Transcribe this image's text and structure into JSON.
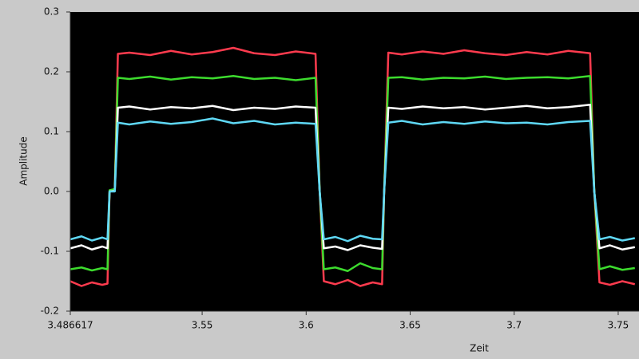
{
  "chart_data": {
    "type": "line",
    "xlabel": "Zeit",
    "ylabel": "Amplitude",
    "xlim": [
      3.486617,
      3.76
    ],
    "ylim": [
      -0.2,
      0.3
    ],
    "xticks": [
      3.486617,
      3.55,
      3.6,
      3.65,
      3.7,
      3.75
    ],
    "yticks": [
      0.3,
      0.2,
      0.1,
      {
        "value": 0,
        "label": "0.0"
      },
      -0.1,
      -0.2
    ],
    "background": "#000000",
    "x": [
      3.4866,
      3.492,
      3.497,
      3.502,
      3.5045,
      3.5055,
      3.508,
      3.5095,
      3.515,
      3.525,
      3.535,
      3.545,
      3.555,
      3.565,
      3.575,
      3.585,
      3.595,
      3.6045,
      3.6065,
      3.6085,
      3.614,
      3.62,
      3.626,
      3.632,
      3.6365,
      3.6375,
      3.6395,
      3.646,
      3.656,
      3.666,
      3.676,
      3.686,
      3.696,
      3.706,
      3.716,
      3.726,
      3.7365,
      3.7385,
      3.741,
      3.746,
      3.752,
      3.758
    ],
    "series": [
      {
        "color": "#ff3b4e",
        "values": [
          -0.15,
          -0.158,
          -0.152,
          -0.156,
          -0.154,
          0.0,
          0.002,
          0.23,
          0.232,
          0.228,
          0.235,
          0.229,
          0.233,
          0.24,
          0.231,
          0.228,
          0.234,
          0.23,
          0.0,
          -0.15,
          -0.155,
          -0.148,
          -0.158,
          -0.152,
          -0.155,
          0.0,
          0.232,
          0.229,
          0.234,
          0.23,
          0.236,
          0.231,
          0.228,
          0.233,
          0.229,
          0.235,
          0.231,
          0.0,
          -0.152,
          -0.156,
          -0.15,
          -0.155
        ]
      },
      {
        "color": "#3ddc2e",
        "values": [
          -0.13,
          -0.127,
          -0.132,
          -0.128,
          -0.13,
          0.002,
          0.004,
          0.19,
          0.188,
          0.192,
          0.187,
          0.191,
          0.189,
          0.193,
          0.188,
          0.19,
          0.186,
          0.19,
          0.002,
          -0.13,
          -0.127,
          -0.133,
          -0.12,
          -0.128,
          -0.13,
          0.002,
          0.19,
          0.191,
          0.187,
          0.19,
          0.189,
          0.192,
          0.188,
          0.19,
          0.191,
          0.189,
          0.193,
          0.002,
          -0.13,
          -0.125,
          -0.131,
          -0.128
        ]
      },
      {
        "color": "#ffffff",
        "values": [
          -0.095,
          -0.09,
          -0.097,
          -0.092,
          -0.095,
          0.0,
          0.001,
          0.14,
          0.142,
          0.137,
          0.141,
          0.139,
          0.143,
          0.136,
          0.14,
          0.138,
          0.142,
          0.14,
          0.0,
          -0.095,
          -0.092,
          -0.098,
          -0.09,
          -0.094,
          -0.096,
          0.0,
          0.14,
          0.138,
          0.142,
          0.139,
          0.141,
          0.137,
          0.14,
          0.143,
          0.139,
          0.141,
          0.145,
          0.0,
          -0.095,
          -0.09,
          -0.097,
          -0.093
        ]
      },
      {
        "color": "#5fd8f5",
        "values": [
          -0.08,
          -0.075,
          -0.082,
          -0.077,
          -0.08,
          0.0,
          0.0,
          0.115,
          0.112,
          0.117,
          0.113,
          0.116,
          0.122,
          0.114,
          0.118,
          0.112,
          0.115,
          0.113,
          0.0,
          -0.08,
          -0.076,
          -0.083,
          -0.074,
          -0.079,
          -0.08,
          0.0,
          0.115,
          0.118,
          0.112,
          0.116,
          0.113,
          0.117,
          0.114,
          0.115,
          0.112,
          0.116,
          0.118,
          0.0,
          -0.08,
          -0.076,
          -0.082,
          -0.078
        ]
      }
    ]
  }
}
